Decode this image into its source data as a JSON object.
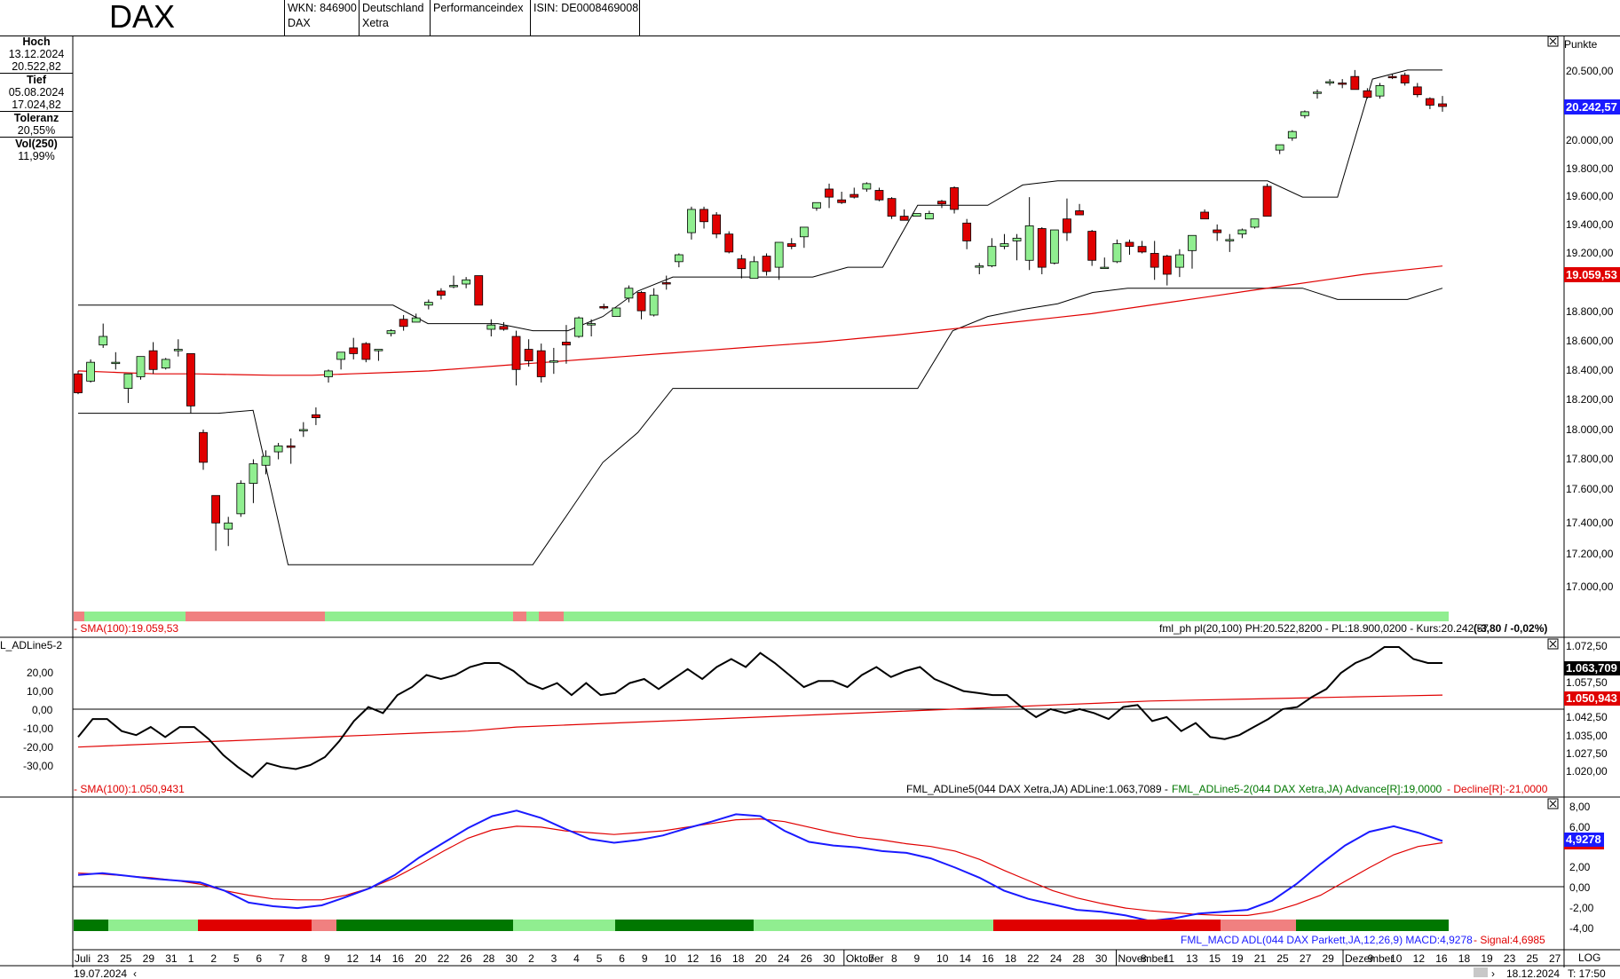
{
  "header": {
    "title": "DAX",
    "wkn": "WKN: 846900",
    "name": "DAX",
    "country": "Deutschland",
    "exchange": "Xetra",
    "type": "Performanceindex",
    "isin": "ISIN: DE0008469008"
  },
  "sidebar": {
    "high_label": "Hoch",
    "high_date": "13.12.2024",
    "high_value": "20.522,82",
    "low_label": "Tief",
    "low_date": "05.08.2024",
    "low_value": "17.024,82",
    "tol_label": "Toleranz",
    "tol_value": "20,55%",
    "vol_label": "Vol(250)",
    "vol_value": "11,99%"
  },
  "main_panel": {
    "unit": "Punkte",
    "yticks": [
      "20.500,00",
      "20.000,00",
      "19.800,00",
      "19.600,00",
      "19.400,00",
      "19.200,00",
      "18.800,00",
      "18.600,00",
      "18.400,00",
      "18.200,00",
      "18.000,00",
      "17.800,00",
      "17.600,00",
      "17.400,00",
      "17.200,00",
      "17.000,00"
    ],
    "price_badge": "20.242,57",
    "sma_badge": "19.059,53",
    "sma_label": "- SMA(100):19.059,53",
    "info_label": "fml_ph pl(20,100) PH:20.522,8200 - PL:18.900,0200 - Kurs:20.242,57",
    "info_change": "(-3,80 / -0,02%)",
    "accent_up": "#90ee90",
    "accent_down": "#e00000",
    "sma_color": "#e00000"
  },
  "adl_panel": {
    "name_left": "L_ADLine5-2",
    "left_ticks": [
      "20,00",
      "10,00",
      "0,00",
      "-10,00",
      "-20,00",
      "-30,00"
    ],
    "right_ticks": [
      "1.072,50",
      "1.057,50",
      "1.042,50",
      "1.035,00",
      "1.027,50",
      "1.020,00"
    ],
    "badge_top": "1.063,709",
    "badge_bottom": "1.050,943",
    "sma_label": "- SMA(100):1.050,9431",
    "info_label": "FML_ADLine5(044 DAX Xetra,JA) ADLine:1.063,7089 -",
    "advance_label": "FML_ADLine5-2(044 DAX Xetra,JA) Advance[R]:19,0000",
    "decline_label": "- Decline[R]:-21,0000"
  },
  "macd_panel": {
    "right_ticks": [
      "8,00",
      "6,00",
      "2,00",
      "0,00",
      "-2,00",
      "-4,00"
    ],
    "badge": "4,9278",
    "info_label": "FML_MACD ADL(044 DAX Parkett,JA,12,26,9) MACD:4,9278",
    "signal_label": "- Signal:4,6985"
  },
  "xaxis": {
    "labels": [
      "Juli",
      "23",
      "25",
      "29",
      "31",
      "1",
      "2",
      "5",
      "6",
      "7",
      "8",
      "9",
      "12",
      "14",
      "16",
      "20",
      "22",
      "26",
      "28",
      "30",
      "2",
      "3",
      "4",
      "5",
      "6",
      "9",
      "10",
      "12",
      "16",
      "18",
      "20",
      "24",
      "26",
      "30",
      "Oktober",
      "7",
      "8",
      "9",
      "10",
      "14",
      "16",
      "18",
      "22",
      "24",
      "28",
      "30",
      "November",
      "8",
      "11",
      "13",
      "15",
      "19",
      "21",
      "25",
      "27",
      "29",
      "Dezember",
      "9",
      "10",
      "12",
      "16",
      "18",
      "19",
      "23",
      "25",
      "27"
    ],
    "start_date": "19.07.2024",
    "end_date": "18.12.2024",
    "log_label": "LOG",
    "time_label": "T: 17:50"
  },
  "chart_data": [
    {
      "type": "candlestick",
      "title": "DAX",
      "ylabel": "Punkte",
      "ylim": [
        16850,
        20650
      ],
      "scale": "log",
      "x_range": [
        "19.07.2024",
        "18.12.2024"
      ],
      "candles_ohlc": [
        [
          18300,
          18320,
          18160,
          18170
        ],
        [
          18250,
          18400,
          18240,
          18380
        ],
        [
          18500,
          18650,
          18480,
          18560
        ],
        [
          18380,
          18450,
          18330,
          18380
        ],
        [
          18200,
          18300,
          18100,
          18300
        ],
        [
          18280,
          18420,
          18260,
          18420
        ],
        [
          18460,
          18520,
          18300,
          18330
        ],
        [
          18340,
          18410,
          18330,
          18400
        ],
        [
          18460,
          18540,
          18420,
          18470
        ],
        [
          18440,
          18440,
          18030,
          18080
        ],
        [
          17900,
          17920,
          17650,
          17700
        ],
        [
          17480,
          17480,
          17120,
          17300
        ],
        [
          17260,
          17340,
          17150,
          17300
        ],
        [
          17360,
          17580,
          17340,
          17560
        ],
        [
          17560,
          17720,
          17430,
          17690
        ],
        [
          17680,
          17780,
          17620,
          17740
        ],
        [
          17770,
          17830,
          17720,
          17810
        ],
        [
          17810,
          17860,
          17690,
          17800
        ],
        [
          17920,
          17970,
          17870,
          17920
        ],
        [
          18020,
          18070,
          17950,
          18000
        ],
        [
          18280,
          18330,
          18240,
          18320
        ],
        [
          18400,
          18450,
          18330,
          18450
        ],
        [
          18480,
          18550,
          18400,
          18440
        ],
        [
          18510,
          18520,
          18380,
          18400
        ],
        [
          18460,
          18470,
          18390,
          18470
        ],
        [
          18580,
          18610,
          18560,
          18600
        ],
        [
          18680,
          18710,
          18600,
          18630
        ],
        [
          18660,
          18720,
          18660,
          18690
        ],
        [
          18780,
          18820,
          18750,
          18800
        ],
        [
          18880,
          18900,
          18820,
          18850
        ],
        [
          18920,
          18990,
          18900,
          18920
        ],
        [
          18930,
          18980,
          18900,
          18960
        ],
        [
          18990,
          18990,
          18780,
          18780
        ],
        [
          18610,
          18680,
          18560,
          18640
        ],
        [
          18630,
          18660,
          18600,
          18610
        ],
        [
          18560,
          18600,
          18220,
          18330
        ],
        [
          18470,
          18540,
          18350,
          18390
        ],
        [
          18460,
          18510,
          18240,
          18280
        ],
        [
          18380,
          18480,
          18300,
          18390
        ],
        [
          18520,
          18640,
          18370,
          18500
        ],
        [
          18560,
          18700,
          18550,
          18690
        ],
        [
          18640,
          18680,
          18560,
          18650
        ],
        [
          18770,
          18790,
          18750,
          18760
        ],
        [
          18700,
          18720,
          18720,
          18760
        ],
        [
          18830,
          18920,
          18800,
          18900
        ],
        [
          18870,
          18880,
          18680,
          18740
        ],
        [
          18710,
          18900,
          18700,
          18850
        ],
        [
          18940,
          18990,
          18890,
          18930
        ],
        [
          19090,
          19150,
          19050,
          19140
        ],
        [
          19300,
          19490,
          19250,
          19470
        ],
        [
          19470,
          19490,
          19330,
          19380
        ],
        [
          19430,
          19450,
          19260,
          19290
        ],
        [
          19290,
          19310,
          19150,
          19160
        ],
        [
          19110,
          19140,
          18970,
          19040
        ],
        [
          18970,
          19130,
          18970,
          19090
        ],
        [
          19130,
          19150,
          18990,
          19020
        ],
        [
          19050,
          19170,
          18960,
          19230
        ],
        [
          19220,
          19260,
          19180,
          19200
        ],
        [
          19270,
          19340,
          19190,
          19340
        ],
        [
          19480,
          19520,
          19460,
          19520
        ],
        [
          19620,
          19660,
          19480,
          19560
        ],
        [
          19540,
          19600,
          19510,
          19520
        ],
        [
          19580,
          19630,
          19550,
          19560
        ],
        [
          19620,
          19670,
          19600,
          19660
        ],
        [
          19610,
          19630,
          19530,
          19540
        ],
        [
          19550,
          19560,
          19400,
          19420
        ],
        [
          19420,
          19470,
          19390,
          19390
        ],
        [
          19420,
          19440,
          19430,
          19440
        ],
        [
          19400,
          19460,
          19400,
          19440
        ],
        [
          19530,
          19540,
          19480,
          19510
        ],
        [
          19630,
          19640,
          19440,
          19470
        ],
        [
          19370,
          19400,
          19180,
          19240
        ],
        [
          19050,
          19080,
          19000,
          19060
        ],
        [
          19060,
          19260,
          19050,
          19200
        ],
        [
          19200,
          19290,
          19180,
          19220
        ],
        [
          19240,
          19290,
          19100,
          19260
        ],
        [
          19100,
          19560,
          19030,
          19350
        ],
        [
          19330,
          19340,
          19000,
          19050
        ],
        [
          19080,
          19290,
          19070,
          19320
        ],
        [
          19400,
          19550,
          19240,
          19300
        ],
        [
          19460,
          19510,
          19450,
          19430
        ],
        [
          19310,
          19320,
          19060,
          19100
        ],
        [
          19050,
          19120,
          19040,
          19050
        ],
        [
          19090,
          19250,
          19080,
          19220
        ],
        [
          19230,
          19250,
          19140,
          19200
        ],
        [
          19200,
          19240,
          19150,
          19160
        ],
        [
          19150,
          19240,
          18960,
          19050
        ],
        [
          19130,
          19140,
          18920,
          19000
        ],
        [
          19050,
          19180,
          18980,
          19140
        ],
        [
          19170,
          19240,
          19040,
          19280
        ],
        [
          19450,
          19470,
          19410,
          19400
        ],
        [
          19320,
          19360,
          19240,
          19300
        ],
        [
          19250,
          19290,
          19160,
          19250
        ],
        [
          19290,
          19330,
          19260,
          19320
        ],
        [
          19340,
          19400,
          19330,
          19400
        ],
        [
          19640,
          19660,
          19420,
          19420
        ],
        [
          19910,
          19920,
          19880,
          19950
        ],
        [
          20000,
          20060,
          19980,
          20050
        ],
        [
          20170,
          20210,
          20150,
          20200
        ],
        [
          20340,
          20370,
          20300,
          20350
        ],
        [
          20420,
          20450,
          20400,
          20430
        ],
        [
          20420,
          20450,
          20380,
          20410
        ],
        [
          20470,
          20520,
          20370,
          20370
        ],
        [
          20360,
          20380,
          20300,
          20310
        ],
        [
          20320,
          20420,
          20300,
          20400
        ],
        [
          20470,
          20490,
          20450,
          20460
        ],
        [
          20480,
          20500,
          20400,
          20420
        ],
        [
          20390,
          20420,
          20310,
          20330
        ],
        [
          20300,
          20310,
          20220,
          20250
        ],
        [
          20260,
          20320,
          20200,
          20240
        ]
      ],
      "series": [
        {
          "name": "SMA(100)",
          "values": [
            18320,
            18310,
            18300,
            18300,
            18295,
            18290,
            18290,
            18300,
            18310,
            18320,
            18340,
            18360,
            18380,
            18400,
            18420,
            18440,
            18460,
            18480,
            18500,
            18520,
            18545,
            18570,
            18600,
            18630,
            18660,
            18690,
            18720,
            18760,
            18800,
            18840,
            18880,
            18920,
            18960,
            19000,
            19030,
            19059
          ]
        },
        {
          "name": "PH",
          "values": [
            18780,
            18780,
            18780,
            18780,
            18780,
            18780,
            18780,
            18780,
            18780,
            18780,
            18650,
            18650,
            18650,
            18600,
            18600,
            18700,
            18880,
            18980,
            18980,
            18980,
            18980,
            18980,
            19050,
            19050,
            19500,
            19500,
            19500,
            19650,
            19680,
            19680,
            19680,
            19680,
            19680,
            19680,
            19680,
            19560,
            19560,
            20450,
            20520,
            20520
          ]
        },
        {
          "name": "PL",
          "values": [
            18030,
            18030,
            18030,
            18030,
            18030,
            18050,
            17030,
            17030,
            17030,
            17030,
            17030,
            17030,
            17030,
            17030,
            17360,
            17700,
            17900,
            18200,
            18200,
            18200,
            18200,
            18200,
            18200,
            18200,
            18200,
            18600,
            18700,
            18750,
            18790,
            18870,
            18900,
            18900,
            18900,
            18900,
            18900,
            18900,
            18820,
            18820,
            18820,
            18900
          ]
        }
      ]
    },
    {
      "type": "line",
      "ylim": [
        -37,
        26
      ],
      "series": [
        {
          "name": "FML_ADLine5-2",
          "values": [
            -15,
            -6,
            -6,
            -12,
            -14,
            -10,
            -15,
            -10,
            -10,
            -16,
            -24,
            -30,
            -35,
            -28,
            -30,
            -31,
            -29,
            -25,
            -17,
            -7,
            0,
            -3,
            6,
            10,
            16,
            14,
            16,
            20,
            22,
            22,
            18,
            12,
            9,
            12,
            6,
            12,
            6,
            7,
            12,
            14,
            9,
            14,
            19,
            14,
            20,
            24,
            20,
            27,
            22,
            16,
            10,
            13,
            13,
            10,
            16,
            20,
            15,
            18,
            20,
            14,
            11,
            8,
            7,
            6,
            6,
            0,
            -5,
            -1,
            -3,
            -1,
            -3,
            -6,
            0,
            1,
            -7,
            -5,
            -12,
            -8,
            -15,
            -16,
            -14,
            -10,
            -6,
            -1,
            0,
            5,
            9,
            17,
            22,
            25,
            30,
            30,
            24,
            22,
            22
          ]
        },
        {
          "name": "SMA(100)",
          "values": [
            -20,
            -19,
            -18,
            -17,
            -16,
            -15,
            -14,
            -13,
            -12,
            -10,
            -9,
            -8,
            -7,
            -6,
            -5,
            -4,
            -3,
            -2,
            -1,
            0,
            1,
            2,
            3,
            3.5,
            4,
            4.5,
            5,
            5.5,
            6
          ]
        }
      ]
    },
    {
      "type": "line",
      "ylim": [
        -5,
        9
      ],
      "series": [
        {
          "name": "MACD",
          "values": [
            1.2,
            1.4,
            1.1,
            0.8,
            0.6,
            0.4,
            -0.5,
            -1.8,
            -2.2,
            -2.4,
            -2.1,
            -1.2,
            -0.2,
            1.2,
            3.1,
            4.7,
            6.3,
            7.6,
            8.2,
            7.4,
            6.2,
            5.1,
            4.7,
            5.0,
            5.5,
            6.3,
            7.0,
            7.8,
            7.6,
            6.0,
            4.8,
            4.4,
            4.2,
            3.8,
            3.6,
            3.0,
            2.0,
            0.9,
            -0.5,
            -1.4,
            -2.0,
            -2.6,
            -2.8,
            -3.2,
            -3.8,
            -3.5,
            -3.0,
            -2.8,
            -2.6,
            -1.6,
            0.2,
            2.4,
            4.4,
            5.9,
            6.5,
            5.8,
            4.9
          ]
        },
        {
          "name": "Signal",
          "values": [
            1.4,
            1.3,
            1.1,
            0.9,
            0.6,
            0.2,
            -0.5,
            -1.0,
            -1.4,
            -1.5,
            -1.5,
            -1.0,
            -0.2,
            0.9,
            2.3,
            3.8,
            5.2,
            6.1,
            6.5,
            6.4,
            6.0,
            5.8,
            5.6,
            5.8,
            6.0,
            6.4,
            6.8,
            7.2,
            7.3,
            7.0,
            6.4,
            5.8,
            5.3,
            5.0,
            4.6,
            4.3,
            3.8,
            2.9,
            1.7,
            0.6,
            -0.5,
            -1.3,
            -1.9,
            -2.4,
            -2.7,
            -2.9,
            -3.1,
            -3.2,
            -3.2,
            -2.8,
            -2.0,
            -1.0,
            0.5,
            2.0,
            3.4,
            4.3,
            4.7
          ]
        }
      ]
    }
  ]
}
